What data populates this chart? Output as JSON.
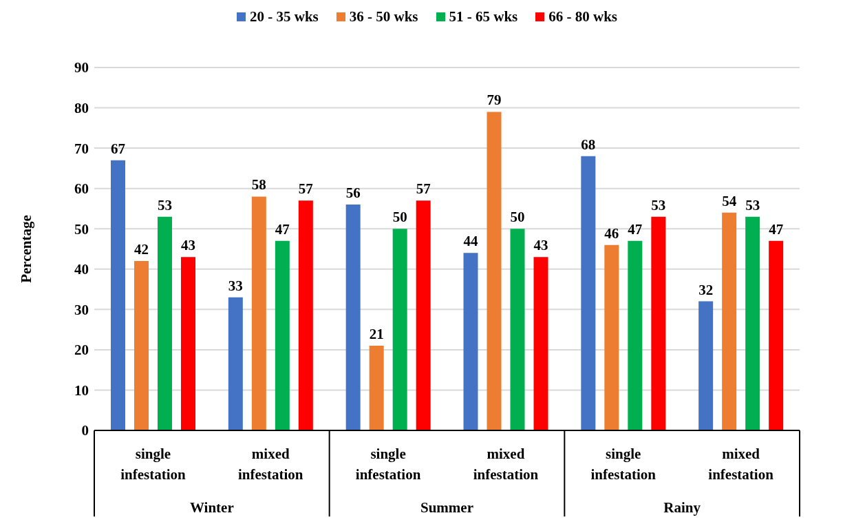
{
  "chart_data": {
    "type": "bar",
    "ylabel": "Percentage",
    "categories": [
      "single infestation",
      "mixed infestation",
      "single infestation",
      "mixed infestation",
      "single infestation",
      "mixed infestation"
    ],
    "annotations": [
      "Winter",
      "Summer",
      "Rainy"
    ],
    "series": [
      {
        "name": "20 - 35 wks",
        "color": "#4472c4",
        "values": [
          67,
          33,
          56,
          44,
          68,
          32
        ]
      },
      {
        "name": "36 - 50 wks",
        "color": "#ed7d31",
        "values": [
          42,
          58,
          21,
          79,
          46,
          54
        ]
      },
      {
        "name": "51 - 65 wks",
        "color": "#00b050",
        "values": [
          53,
          47,
          50,
          50,
          47,
          53
        ]
      },
      {
        "name": "66 - 80 wks",
        "color": "#ff0000",
        "values": [
          43,
          57,
          57,
          43,
          53,
          47
        ]
      }
    ],
    "ylim": [
      0,
      90
    ],
    "yticks": [
      0,
      10,
      20,
      30,
      40,
      50,
      60,
      70,
      80,
      90
    ],
    "grid": "y",
    "legend": "top",
    "data_labels": true
  }
}
